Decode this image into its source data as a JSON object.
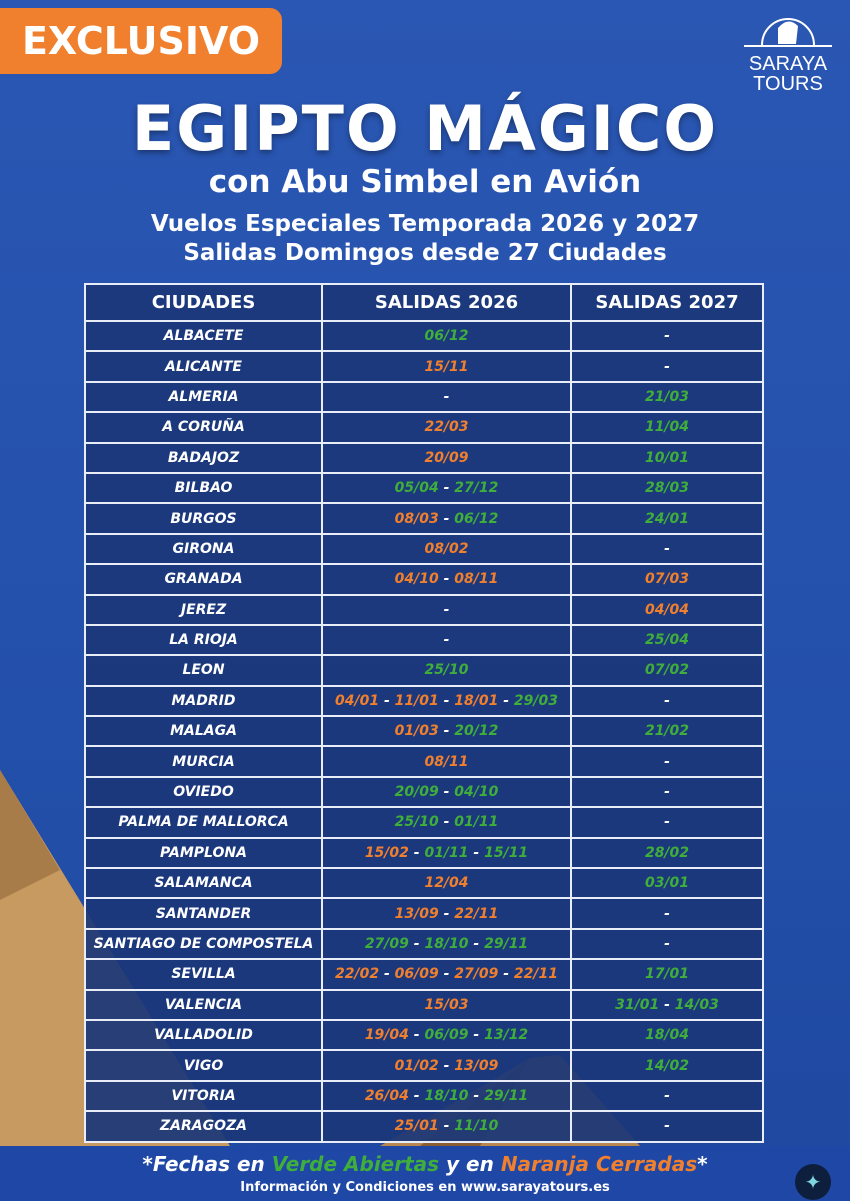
{
  "badge": "EXCLUSIVO",
  "logo": {
    "line1": "SARAYA",
    "line2": "TOURS",
    "icon": "pharaoh-head-icon"
  },
  "title": "EGIPTO MÁGICO",
  "subtitle": "con Abu Simbel en Avión",
  "tagline1": "Vuelos Especiales Temporada 2026 y 2027",
  "tagline2": "Salidas Domingos desde 27 Ciudades",
  "colors": {
    "green": "#3fae3a",
    "orange": "#f07f2e",
    "blue": "#2552ad",
    "badge": "#f07f2e"
  },
  "table": {
    "headers": [
      "CIUDADES",
      "SALIDAS 2026",
      "SALIDAS 2027"
    ],
    "rows": [
      {
        "city": "ALBACETE",
        "s2026": [
          [
            "06/12",
            "g"
          ]
        ],
        "s2027": [
          [
            "-",
            "w"
          ]
        ]
      },
      {
        "city": "ALICANTE",
        "s2026": [
          [
            "15/11",
            "o"
          ]
        ],
        "s2027": [
          [
            "-",
            "w"
          ]
        ]
      },
      {
        "city": "ALMERIA",
        "s2026": [
          [
            "-",
            "w"
          ]
        ],
        "s2027": [
          [
            "21/03",
            "g"
          ]
        ]
      },
      {
        "city": "A CORUÑA",
        "s2026": [
          [
            "22/03",
            "o"
          ]
        ],
        "s2027": [
          [
            "11/04",
            "g"
          ]
        ]
      },
      {
        "city": "BADAJOZ",
        "s2026": [
          [
            "20/09",
            "o"
          ]
        ],
        "s2027": [
          [
            "10/01",
            "g"
          ]
        ]
      },
      {
        "city": "BILBAO",
        "s2026": [
          [
            "05/04",
            "g"
          ],
          [
            "27/12",
            "g"
          ]
        ],
        "s2027": [
          [
            "28/03",
            "g"
          ]
        ]
      },
      {
        "city": "BURGOS",
        "s2026": [
          [
            "08/03",
            "o"
          ],
          [
            "06/12",
            "g"
          ]
        ],
        "s2027": [
          [
            "24/01",
            "g"
          ]
        ]
      },
      {
        "city": "GIRONA",
        "s2026": [
          [
            "08/02",
            "o"
          ]
        ],
        "s2027": [
          [
            "-",
            "w"
          ]
        ]
      },
      {
        "city": "GRANADA",
        "s2026": [
          [
            "04/10",
            "o"
          ],
          [
            "08/11",
            "o"
          ]
        ],
        "s2027": [
          [
            "07/03",
            "o"
          ]
        ]
      },
      {
        "city": "JEREZ",
        "s2026": [
          [
            "-",
            "w"
          ]
        ],
        "s2027": [
          [
            "04/04",
            "o"
          ]
        ]
      },
      {
        "city": "LA RIOJA",
        "s2026": [
          [
            "-",
            "w"
          ]
        ],
        "s2027": [
          [
            "25/04",
            "g"
          ]
        ]
      },
      {
        "city": "LEON",
        "s2026": [
          [
            "25/10",
            "g"
          ]
        ],
        "s2027": [
          [
            "07/02",
            "g"
          ]
        ]
      },
      {
        "city": "MADRID",
        "s2026": [
          [
            "04/01",
            "o"
          ],
          [
            "11/01",
            "o"
          ],
          [
            "18/01",
            "o"
          ],
          [
            "29/03",
            "g"
          ]
        ],
        "s2027": [
          [
            "-",
            "w"
          ]
        ]
      },
      {
        "city": "MALAGA",
        "s2026": [
          [
            "01/03",
            "o"
          ],
          [
            "20/12",
            "g"
          ]
        ],
        "s2027": [
          [
            "21/02",
            "g"
          ]
        ]
      },
      {
        "city": "MURCIA",
        "s2026": [
          [
            "08/11",
            "o"
          ]
        ],
        "s2027": [
          [
            "-",
            "w"
          ]
        ]
      },
      {
        "city": "OVIEDO",
        "s2026": [
          [
            "20/09",
            "g"
          ],
          [
            "04/10",
            "g"
          ]
        ],
        "s2027": [
          [
            "-",
            "w"
          ]
        ]
      },
      {
        "city": "PALMA DE  MALLORCA",
        "s2026": [
          [
            "25/10",
            "g"
          ],
          [
            "01/11",
            "g"
          ]
        ],
        "s2027": [
          [
            "-",
            "w"
          ]
        ]
      },
      {
        "city": "PAMPLONA",
        "s2026": [
          [
            "15/02",
            "o"
          ],
          [
            "01/11",
            "g"
          ],
          [
            "15/11",
            "g"
          ]
        ],
        "s2027": [
          [
            "28/02",
            "g"
          ]
        ]
      },
      {
        "city": "SALAMANCA",
        "s2026": [
          [
            "12/04",
            "o"
          ]
        ],
        "s2027": [
          [
            "03/01",
            "g"
          ]
        ]
      },
      {
        "city": "SANTANDER",
        "s2026": [
          [
            "13/09",
            "o"
          ],
          [
            "22/11",
            "o"
          ]
        ],
        "s2027": [
          [
            "-",
            "w"
          ]
        ]
      },
      {
        "city": "SANTIAGO DE COMPOSTELA",
        "s2026": [
          [
            "27/09",
            "g"
          ],
          [
            "18/10",
            "g"
          ],
          [
            "29/11",
            "g"
          ]
        ],
        "s2027": [
          [
            "-",
            "w"
          ]
        ]
      },
      {
        "city": "SEVILLA",
        "s2026": [
          [
            "22/02",
            "o"
          ],
          [
            "06/09",
            "o"
          ],
          [
            "27/09",
            "o"
          ],
          [
            "22/11",
            "o"
          ]
        ],
        "s2027": [
          [
            "17/01",
            "g"
          ]
        ]
      },
      {
        "city": "VALENCIA",
        "s2026": [
          [
            "15/03",
            "o"
          ]
        ],
        "s2027": [
          [
            "31/01",
            "g"
          ],
          [
            "14/03",
            "g"
          ]
        ]
      },
      {
        "city": "VALLADOLID",
        "s2026": [
          [
            "19/04",
            "o"
          ],
          [
            "06/09",
            "g"
          ],
          [
            "13/12",
            "g"
          ]
        ],
        "s2027": [
          [
            "18/04",
            "g"
          ]
        ]
      },
      {
        "city": "VIGO",
        "s2026": [
          [
            "01/02",
            "o"
          ],
          [
            "13/09",
            "o"
          ]
        ],
        "s2027": [
          [
            "14/02",
            "g"
          ]
        ]
      },
      {
        "city": "VITORIA",
        "s2026": [
          [
            "26/04",
            "o"
          ],
          [
            "18/10",
            "g"
          ],
          [
            "29/11",
            "g"
          ]
        ],
        "s2027": [
          [
            "-",
            "w"
          ]
        ]
      },
      {
        "city": "ZARAGOZA",
        "s2026": [
          [
            "25/01",
            "o"
          ],
          [
            "11/10",
            "g"
          ]
        ],
        "s2027": [
          [
            "-",
            "w"
          ]
        ]
      }
    ]
  },
  "footer": {
    "a": "*Fechas en ",
    "b": "Verde Abiertas",
    "c": " y en ",
    "d": "Naranja Cerradas",
    "e": "*",
    "info": "Información y Condiciones en www.sarayatours.es"
  }
}
